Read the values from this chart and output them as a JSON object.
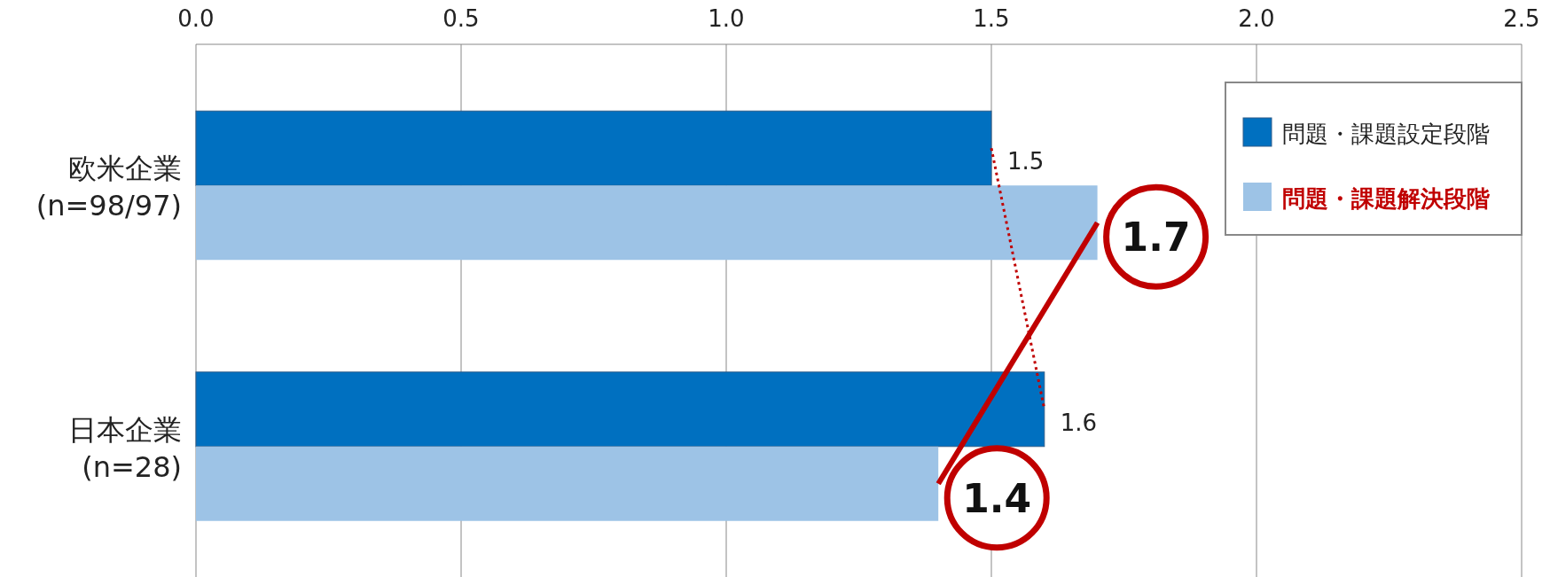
{
  "chart_data": {
    "type": "bar",
    "orientation": "horizontal",
    "categories": [
      "欧米企業\n(n=98/97)",
      "日本企業\n(n=28)"
    ],
    "series": [
      {
        "name": "問題・課題設定段階",
        "color": "#0070c0",
        "values": [
          1.5,
          1.6
        ]
      },
      {
        "name": "問題・課題解決段階",
        "color": "#9dc3e6",
        "values": [
          1.7,
          1.4
        ]
      }
    ],
    "xlim": [
      0,
      2.5
    ],
    "xticks": [
      {
        "value": 0,
        "label": "0.0"
      },
      {
        "value": 0.5,
        "label": "0.5"
      },
      {
        "value": 1,
        "label": "1.0"
      },
      {
        "value": 1.5,
        "label": "1.5"
      },
      {
        "value": 2,
        "label": "2.0"
      },
      {
        "value": 2.5,
        "label": "2.5"
      }
    ],
    "grid": "x",
    "legend": "top right",
    "data_labels": true
  }
}
